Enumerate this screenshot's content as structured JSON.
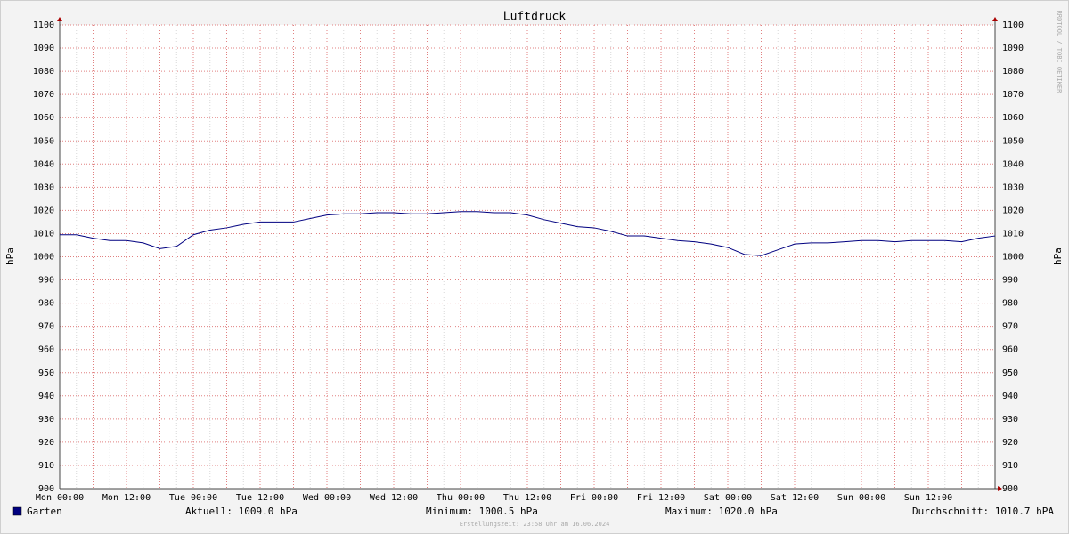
{
  "chart_data": {
    "type": "line",
    "title": "Luftdruck",
    "y_label": "hPa",
    "watermark": "RRDTOOL / TOBI OETIKER",
    "categories": [
      "Mon 00:00",
      null,
      null,
      null,
      "Mon 12:00",
      null,
      null,
      null,
      "Tue 00:00",
      null,
      null,
      null,
      "Tue 12:00",
      null,
      null,
      null,
      "Wed 00:00",
      null,
      null,
      null,
      "Wed 12:00",
      null,
      null,
      null,
      "Thu 00:00",
      null,
      null,
      null,
      "Thu 12:00",
      null,
      null,
      null,
      "Fri 00:00",
      null,
      null,
      null,
      "Fri 12:00",
      null,
      null,
      null,
      "Sat 00:00",
      null,
      null,
      null,
      "Sat 12:00",
      null,
      null,
      null,
      "Sun 00:00",
      null,
      null,
      null,
      "Sun 12:00",
      null,
      null,
      null,
      null
    ],
    "series": [
      {
        "name": "Garten",
        "color": "#000080",
        "values": [
          1009.5,
          1009.5,
          1008,
          1007,
          1007,
          1006,
          1003.5,
          1004.5,
          1009.5,
          1011.5,
          1012.5,
          1014,
          1015,
          1015,
          1015,
          1016.5,
          1018,
          1018.5,
          1018.5,
          1019,
          1019,
          1018.5,
          1018.5,
          1019,
          1019.5,
          1019.5,
          1019,
          1019,
          1018,
          1016,
          1014.5,
          1013,
          1012.5,
          1011,
          1009,
          1009,
          1008,
          1007,
          1006.5,
          1005.5,
          1004,
          1001,
          1000.5,
          1003,
          1005.5,
          1006,
          1006,
          1006.5,
          1007,
          1007,
          1006.5,
          1007,
          1007,
          1007,
          1006.5,
          1008,
          1009
        ]
      }
    ],
    "ylim": [
      900,
      1100
    ],
    "yticks": [
      900,
      910,
      920,
      930,
      940,
      950,
      960,
      970,
      980,
      990,
      1000,
      1010,
      1020,
      1030,
      1040,
      1050,
      1060,
      1070,
      1080,
      1090,
      1100
    ],
    "grid": true,
    "legend_stats": [
      "Aktuell: 1009.0 hPa",
      "Minimum: 1000.5 hPa",
      "Maximum: 1020.0 hPa",
      "Durchschnitt: 1010.7 hPA"
    ],
    "footer": "Erstellungszeit: 23:58 Uhr am 16.06.2024"
  }
}
